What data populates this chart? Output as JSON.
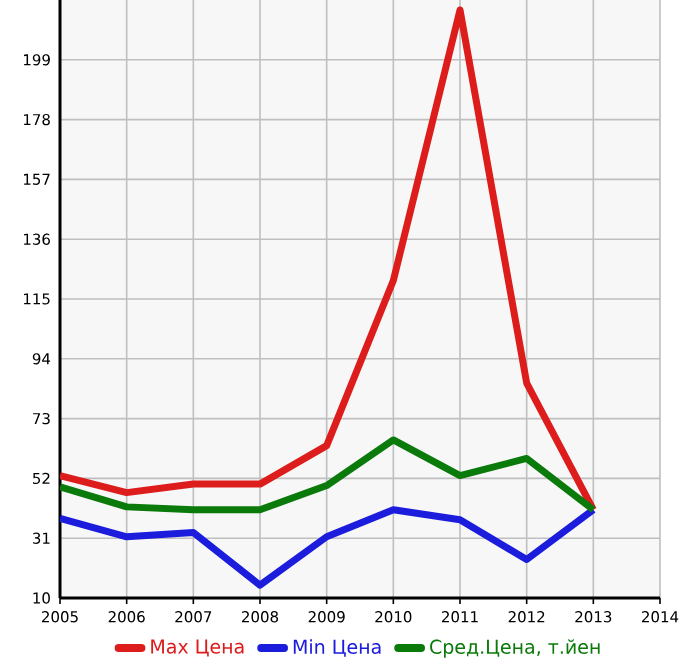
{
  "chart_data": {
    "type": "line",
    "x": [
      2005,
      2006,
      2007,
      2008,
      2009,
      2010,
      2011,
      2012,
      2013
    ],
    "series": [
      {
        "name": "Max Цена",
        "color": "#dd1c1c",
        "values": [
          53,
          47,
          50,
          50,
          63.5,
          121.5,
          216.5,
          85.5,
          41
        ]
      },
      {
        "name": "Min Цена",
        "color": "#1c1cdd",
        "values": [
          38,
          31.5,
          33,
          14.5,
          31.5,
          41,
          37.5,
          23.5,
          41
        ]
      },
      {
        "name": "Сред.Цена, т.йен",
        "color": "#0a7a0a",
        "values": [
          49,
          42,
          41,
          41,
          49.5,
          65.5,
          53,
          59,
          41
        ]
      }
    ],
    "xlim": [
      2005,
      2014
    ],
    "xticks": [
      2005,
      2006,
      2007,
      2008,
      2009,
      2010,
      2011,
      2012,
      2013,
      2014
    ],
    "ylim": [
      10,
      220
    ],
    "yticks": [
      10,
      31,
      52,
      73,
      94,
      115,
      136,
      157,
      178,
      199
    ],
    "grid": true,
    "legend": "bottom",
    "marker": "none",
    "line_style": "solid"
  }
}
